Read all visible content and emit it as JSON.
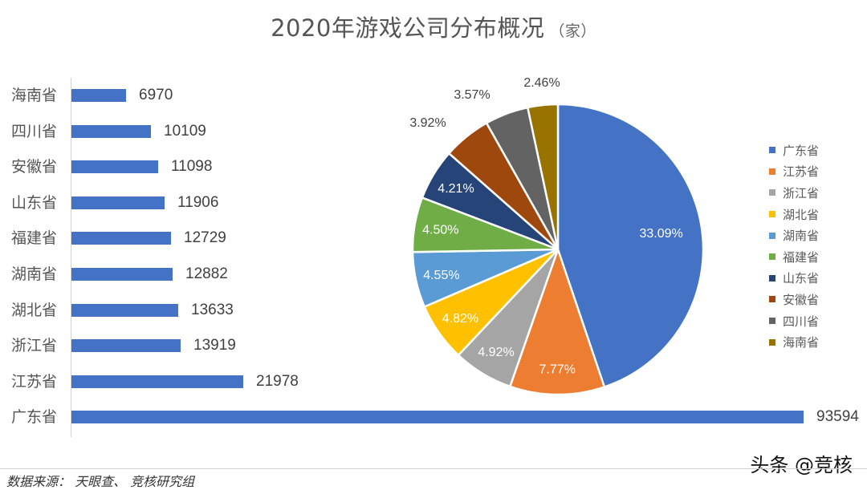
{
  "title": {
    "main": "2020年游戏公司分布概况",
    "unit": "（家）"
  },
  "colors": {
    "bar": "#4472c4",
    "axis": "#d0d0d0"
  },
  "chart_data": [
    {
      "type": "bar",
      "orientation": "horizontal",
      "title": "2020年游戏公司分布概况（家）",
      "categories": [
        "海南省",
        "四川省",
        "安徽省",
        "山东省",
        "福建省",
        "湖南省",
        "湖北省",
        "浙江省",
        "江苏省",
        "广东省"
      ],
      "values": [
        6970,
        10109,
        11098,
        11906,
        12729,
        12882,
        13633,
        13919,
        21978,
        93594
      ],
      "value_labels": [
        "6970",
        "10109",
        "11098",
        "11906",
        "12729",
        "12882",
        "13633",
        "13919",
        "21978",
        "93594"
      ],
      "xlabel": "",
      "ylabel": "",
      "grid": false,
      "color": "#4472c4"
    },
    {
      "type": "pie",
      "categories": [
        "广东省",
        "江苏省",
        "浙江省",
        "湖北省",
        "湖南省",
        "福建省",
        "山东省",
        "安徽省",
        "四川省",
        "海南省"
      ],
      "values": [
        93594,
        21978,
        13919,
        13633,
        12882,
        12729,
        11906,
        11098,
        10109,
        6970
      ],
      "data_labels": [
        "33.09%",
        "7.77%",
        "4.92%",
        "4.82%",
        "4.55%",
        "4.50%",
        "4.21%",
        "3.92%",
        "3.57%",
        "2.46%"
      ],
      "colors": [
        "#4472c4",
        "#ed7d31",
        "#a5a5a5",
        "#ffc000",
        "#5b9bd5",
        "#70ad47",
        "#264478",
        "#9e480e",
        "#636363",
        "#997300"
      ],
      "legend_position": "right"
    }
  ],
  "bars": [
    {
      "label": "海南省",
      "value": 6970,
      "text": "6970"
    },
    {
      "label": "四川省",
      "value": 10109,
      "text": "10109"
    },
    {
      "label": "安徽省",
      "value": 11098,
      "text": "11098"
    },
    {
      "label": "山东省",
      "value": 11906,
      "text": "11906"
    },
    {
      "label": "福建省",
      "value": 12729,
      "text": "12729"
    },
    {
      "label": "湖南省",
      "value": 12882,
      "text": "12882"
    },
    {
      "label": "湖北省",
      "value": 13633,
      "text": "13633"
    },
    {
      "label": "浙江省",
      "value": 13919,
      "text": "13919"
    },
    {
      "label": "江苏省",
      "value": 21978,
      "text": "21978"
    },
    {
      "label": "广东省",
      "value": 93594,
      "text": "93594"
    }
  ],
  "pie": {
    "slices": [
      {
        "label": "广东省",
        "value": 93594,
        "pct": "33.09%",
        "color": "#4472c4",
        "inside": true
      },
      {
        "label": "江苏省",
        "value": 21978,
        "pct": "7.77%",
        "color": "#ed7d31",
        "inside": true
      },
      {
        "label": "浙江省",
        "value": 13919,
        "pct": "4.92%",
        "color": "#a5a5a5",
        "inside": true
      },
      {
        "label": "湖北省",
        "value": 13633,
        "pct": "4.82%",
        "color": "#ffc000",
        "inside": true
      },
      {
        "label": "湖南省",
        "value": 12882,
        "pct": "4.55%",
        "color": "#5b9bd5",
        "inside": true
      },
      {
        "label": "福建省",
        "value": 12729,
        "pct": "4.50%",
        "color": "#70ad47",
        "inside": true
      },
      {
        "label": "山东省",
        "value": 11906,
        "pct": "4.21%",
        "color": "#264478",
        "inside": true
      },
      {
        "label": "安徽省",
        "value": 11098,
        "pct": "3.92%",
        "color": "#9e480e",
        "inside": false
      },
      {
        "label": "四川省",
        "value": 10109,
        "pct": "3.57%",
        "color": "#636363",
        "inside": false
      },
      {
        "label": "海南省",
        "value": 6970,
        "pct": "2.46%",
        "color": "#997300",
        "inside": false
      }
    ]
  },
  "legend": [
    {
      "label": "广东省",
      "color": "#4472c4"
    },
    {
      "label": "江苏省",
      "color": "#ed7d31"
    },
    {
      "label": "浙江省",
      "color": "#a5a5a5"
    },
    {
      "label": "湖北省",
      "color": "#ffc000"
    },
    {
      "label": "湖南省",
      "color": "#5b9bd5"
    },
    {
      "label": "福建省",
      "color": "#70ad47"
    },
    {
      "label": "山东省",
      "color": "#264478"
    },
    {
      "label": "安徽省",
      "color": "#9e480e"
    },
    {
      "label": "四川省",
      "color": "#636363"
    },
    {
      "label": "海南省",
      "color": "#997300"
    }
  ],
  "watermark": "头条 @竞核",
  "source": "数据来源： 天眼查、 竞核研究组"
}
